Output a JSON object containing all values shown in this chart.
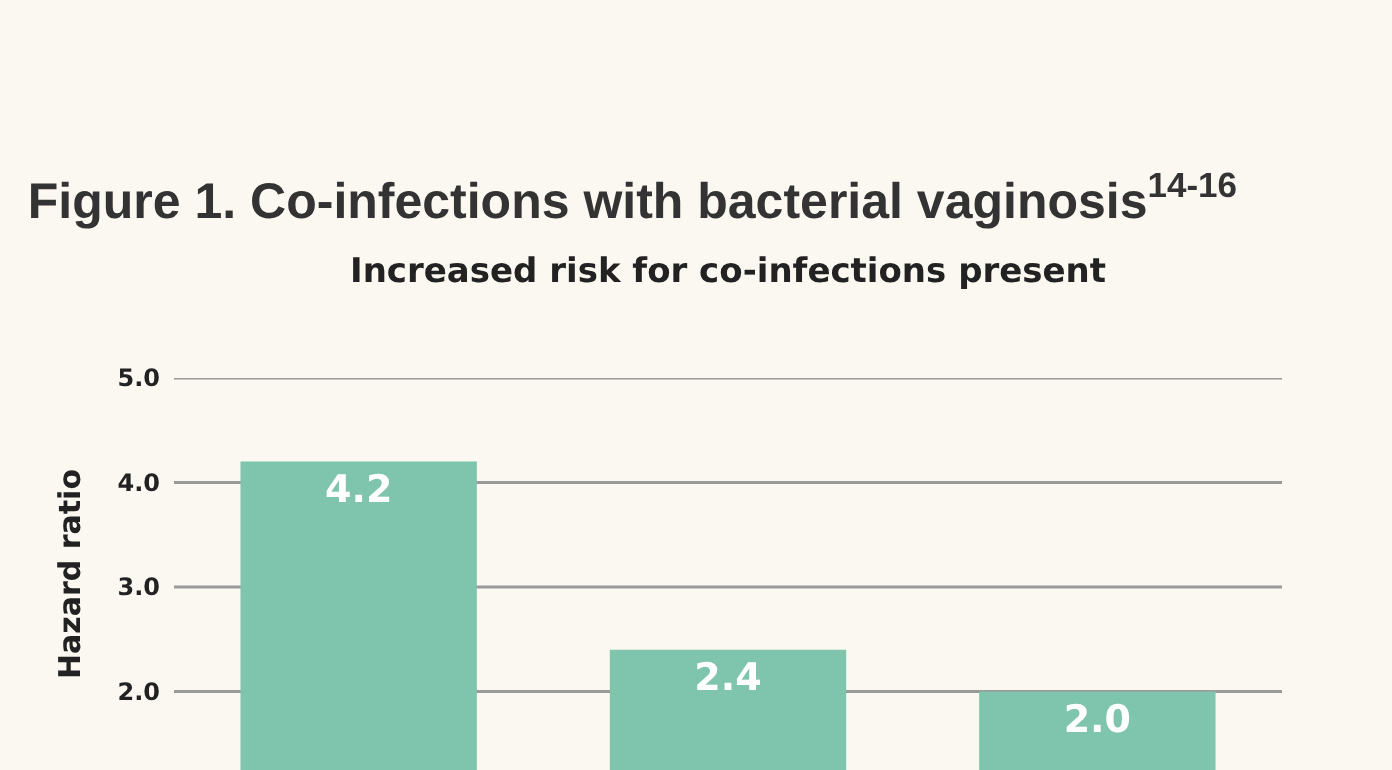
{
  "chart_data": {
    "type": "bar",
    "title": "Figure 1. Co-infections with bacterial vaginosis$^{14-16}$",
    "subtitle": "Increased risk for co-infections present",
    "ylabel": "Hazard ratio",
    "categories": [
      null,
      null,
      null
    ],
    "values": [
      4.2,
      2.4,
      2.0
    ],
    "color": "#7fc4ad",
    "value_labels": [
      "4.2",
      "2.4",
      "2.0"
    ],
    "ylim": [
      1.25,
      5.0
    ],
    "yticks": [
      {
        "value": 2,
        "label": "2.0"
      },
      {
        "value": 3,
        "label": "3.0"
      },
      {
        "value": 4,
        "label": "4.0"
      },
      {
        "value": 5,
        "label": "5.0"
      }
    ],
    "grid": "y"
  }
}
